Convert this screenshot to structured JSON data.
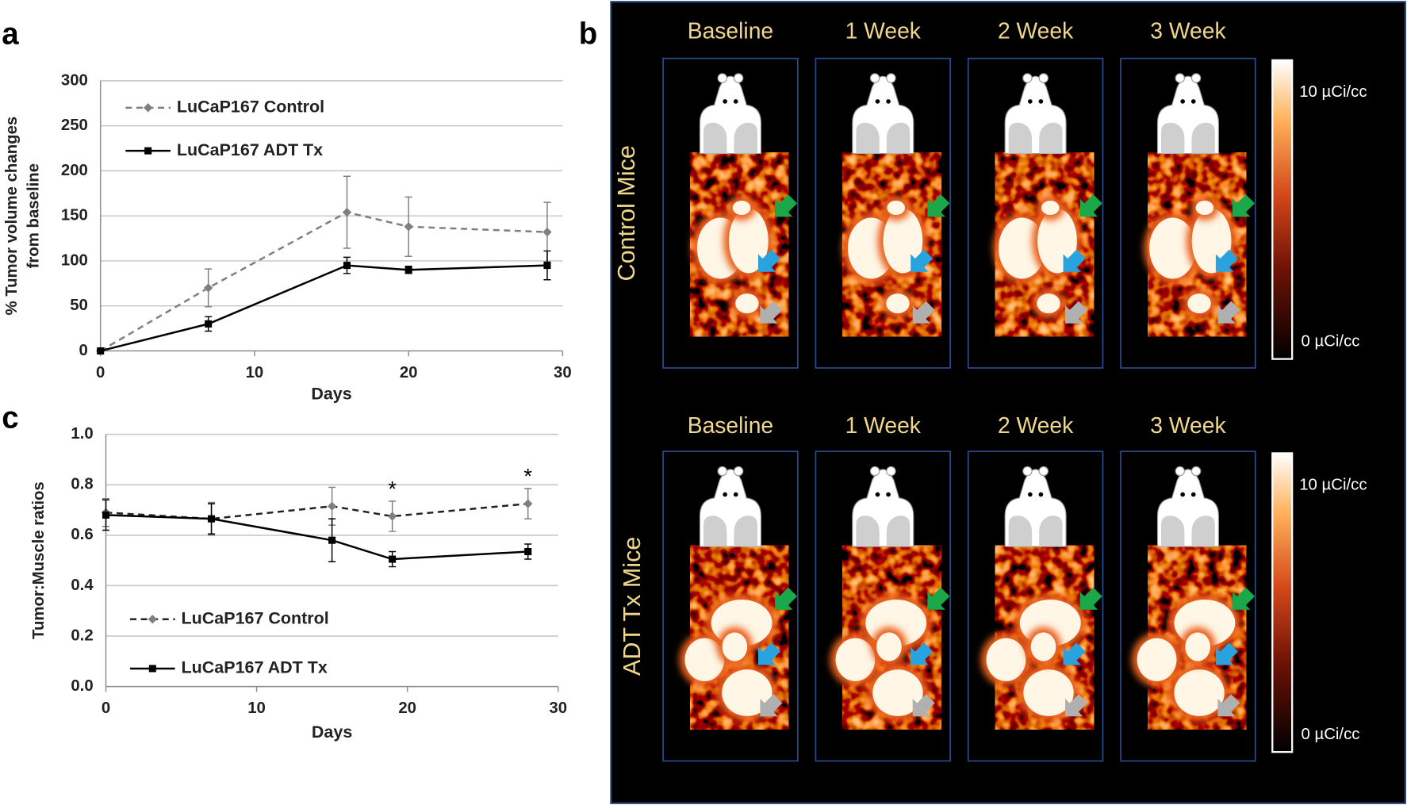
{
  "chart_data": [
    {
      "type": "line",
      "panel": "a",
      "xlabel": "Days",
      "ylabel": [
        "% Tumor volume changes",
        "from baseline"
      ],
      "x": [
        0,
        7,
        16,
        20,
        29
      ],
      "xlim": [
        0,
        30
      ],
      "xticks": [
        0,
        10,
        20,
        30
      ],
      "ylim": [
        0,
        300
      ],
      "yticks": [
        0,
        50,
        100,
        150,
        200,
        250,
        300
      ],
      "grid": true,
      "series": [
        {
          "name": "LuCaP167 Control",
          "color": "#7f7f7f",
          "dashed": true,
          "marker": "diamond",
          "values": [
            0,
            70,
            154,
            138,
            132
          ],
          "errors": [
            0,
            21,
            40,
            33,
            33
          ]
        },
        {
          "name": "LuCaP167 ADT Tx",
          "color": "#000000",
          "dashed": false,
          "marker": "square",
          "values": [
            0,
            30,
            95,
            90,
            95
          ],
          "errors": [
            0,
            8,
            9,
            4,
            16
          ]
        }
      ]
    },
    {
      "type": "line",
      "panel": "c",
      "xlabel": "Days",
      "ylabel": "Tumor:Muscle ratios",
      "x": [
        0,
        7,
        15,
        19,
        28
      ],
      "xlim": [
        0,
        30
      ],
      "xticks": [
        0,
        10,
        20,
        30
      ],
      "ylim": [
        0,
        1
      ],
      "yticks": [
        {
          "value": 0,
          "label": "0.0"
        },
        0.2,
        0.4,
        0.6,
        0.8,
        {
          "value": 1,
          "label": "1.0"
        }
      ],
      "grid": true,
      "series": [
        {
          "name": "LuCaP167 Control",
          "color": "#222222",
          "marker_color": "#7f7f7f",
          "dashed": true,
          "marker": "diamond",
          "values": [
            0.69,
            0.665,
            0.715,
            0.675,
            0.725
          ],
          "errors": [
            0.055,
            0.065,
            0.075,
            0.06,
            0.06
          ]
        },
        {
          "name": "LuCaP167 ADT Tx",
          "color": "#000000",
          "dashed": false,
          "marker": "square",
          "values": [
            0.68,
            0.665,
            0.58,
            0.505,
            0.535
          ],
          "errors": [
            0.06,
            0.06,
            0.085,
            0.03,
            0.03
          ]
        }
      ],
      "annotations": [
        {
          "text": "*",
          "x": 19
        },
        {
          "text": "*",
          "x": 28
        }
      ]
    }
  ],
  "panel_b": {
    "panel": "b",
    "rows": [
      {
        "label": "Control Mice",
        "columns": [
          "Baseline",
          "1 Week",
          "2 Week",
          "3 Week"
        ],
        "scale_max": "10 µCi/cc",
        "scale_min": "0 µCi/cc"
      },
      {
        "label": "ADT Tx Mice",
        "columns": [
          "Baseline",
          "1 Week",
          "2 Week",
          "3 Week"
        ],
        "scale_max": "10 µCi/cc",
        "scale_min": "0 µCi/cc"
      }
    ]
  }
}
